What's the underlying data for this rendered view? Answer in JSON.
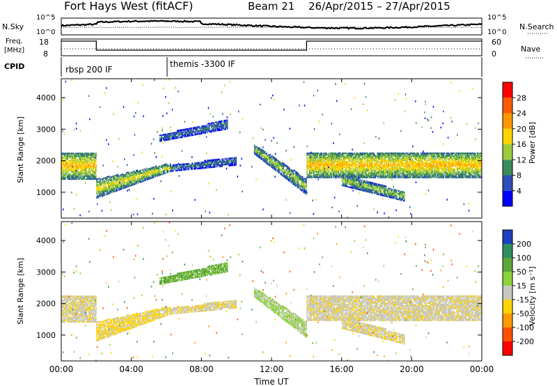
{
  "header": {
    "station": "Fort Hays West (fitACF)",
    "beam": "Beam 21",
    "date_range": "26/Apr/2015 – 27/Apr/2015"
  },
  "noise_panel": {
    "left_label": "N.Sky",
    "left_ticks": [
      "10^5",
      "10^0"
    ],
    "right_ticks": [
      "10^5",
      "10^0"
    ],
    "right_label": "N.Search"
  },
  "freq_panel": {
    "left_label_1": "Freq.",
    "left_label_2": "[MHz]",
    "left_ticks": [
      "18",
      "8"
    ],
    "right_ticks": [
      "60",
      "0"
    ],
    "right_label": "Nave"
  },
  "cpid": {
    "label": "CPID",
    "segments": [
      {
        "name": "rbsp 200 IF",
        "start_hour": 0.0,
        "end_hour": 6.0
      },
      {
        "name": "themis -3300 IF",
        "start_hour": 6.0,
        "end_hour": 24.0
      }
    ]
  },
  "x_axis": {
    "label": "Time UT",
    "ticks": [
      "00:00",
      "04:00",
      "08:00",
      "12:00",
      "16:00",
      "20:00",
      "00:00"
    ]
  },
  "power_panel": {
    "ylabel": "Slant Range [km]",
    "yticks": [
      "1000",
      "2000",
      "3000",
      "4000"
    ],
    "colorbar_label": "Power [dB]",
    "colorbar_ticks": [
      "4",
      "8",
      "12",
      "16",
      "20",
      "24",
      "28"
    ],
    "colors": [
      "#0000ff",
      "#2d4fb7",
      "#3c8c5a",
      "#9ccc3c",
      "#ffd400",
      "#ff9900",
      "#ff5a00",
      "#ff0000"
    ]
  },
  "velocity_panel": {
    "ylabel": "Slant Range [km]",
    "yticks": [
      "1000",
      "2000",
      "3000",
      "4000"
    ],
    "colorbar_label": "Velocity [m s⁻¹]",
    "colorbar_ticks": [
      "200",
      "100",
      "50",
      "15",
      "-15",
      "-50",
      "-100",
      "-200"
    ],
    "colors": [
      "#1f3fbf",
      "#2f8f5f",
      "#5ea63a",
      "#8dd23c",
      "#c8c8c0",
      "#ffd400",
      "#ff9900",
      "#ff5000",
      "#ff0000"
    ]
  },
  "chart_data": {
    "type": "heatmap",
    "x_range_hours": [
      0,
      24
    ],
    "y_range_km": [
      180,
      4600
    ],
    "frequency_steps": [
      {
        "start_hour": 0.0,
        "end_hour": 2.0,
        "level": "high"
      },
      {
        "start_hour": 2.0,
        "end_hour": 14.0,
        "level": "low"
      },
      {
        "start_hour": 14.0,
        "end_hour": 24.0,
        "level": "high"
      }
    ],
    "echo_bands": [
      {
        "name": "early-band",
        "t0": 0.0,
        "t1": 2.0,
        "r0": 1400,
        "r1": 2250,
        "power": 14,
        "velocity": -5
      },
      {
        "name": "rising-band",
        "t0": 2.0,
        "t1": 6.2,
        "r0_start": 800,
        "r0_end": 1650,
        "r1_start": 1400,
        "r1_end": 1900,
        "power": 12,
        "velocity": -20
      },
      {
        "name": "plateau-band",
        "t0": 6.2,
        "t1": 10.0,
        "r0_start": 1650,
        "r0_end": 1850,
        "r1_start": 1850,
        "r1_end": 2100,
        "power": 6,
        "velocity": -10
      },
      {
        "name": "far-band",
        "t0": 5.6,
        "t1": 9.5,
        "r0_start": 2600,
        "r0_end": 3000,
        "r1_start": 2800,
        "r1_end": 3300,
        "power": 6,
        "velocity": 60
      },
      {
        "name": "midnight-decay",
        "t0": 11.0,
        "t1": 14.0,
        "r0_start": 2200,
        "r0_end": 900,
        "r1_start": 2500,
        "r1_end": 1400,
        "power": 10,
        "velocity": 20
      },
      {
        "name": "late-band",
        "t0": 14.0,
        "t1": 24.0,
        "r0": 1450,
        "r1": 2250,
        "power": 14,
        "velocity": -5
      },
      {
        "name": "late-lower",
        "t0": 16.0,
        "t1": 19.6,
        "r0_start": 1200,
        "r0_end": 700,
        "r1_start": 1550,
        "r1_end": 1000,
        "power": 10,
        "velocity": -10
      }
    ]
  }
}
